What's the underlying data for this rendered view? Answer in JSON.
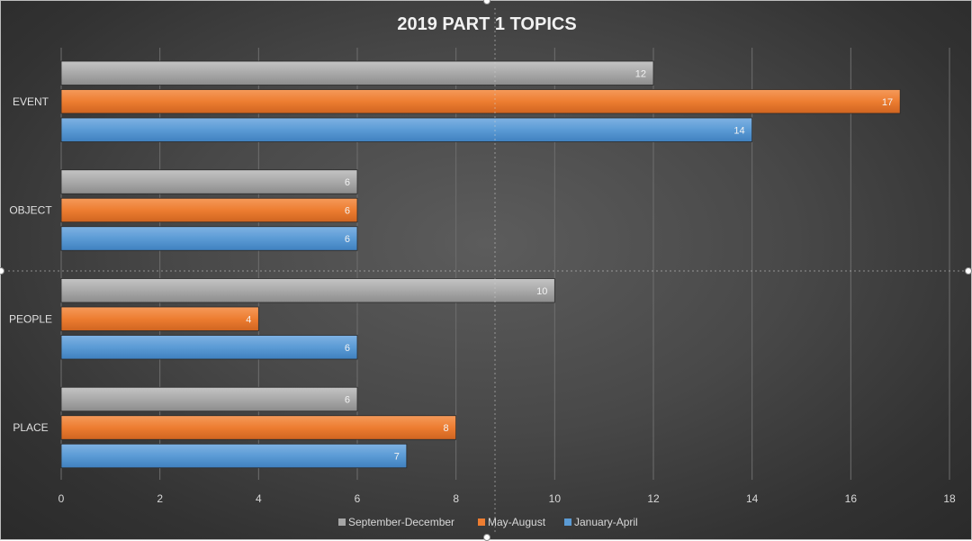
{
  "chart_data": {
    "type": "bar",
    "orientation": "horizontal",
    "title": "2019 PART 1 TOPICS",
    "categories": [
      "EVENT",
      "OBJECT",
      "PEOPLE",
      "PLACE"
    ],
    "series": [
      {
        "name": "September-December",
        "color": "#a6a6a6",
        "values": [
          12,
          6,
          10,
          6
        ]
      },
      {
        "name": "May-August",
        "color": "#ed7d31",
        "values": [
          17,
          6,
          4,
          8
        ]
      },
      {
        "name": "January-April",
        "color": "#5b9bd5",
        "values": [
          14,
          6,
          6,
          7
        ]
      }
    ],
    "xlim": [
      0,
      18
    ],
    "xticks": [
      0,
      2,
      4,
      6,
      8,
      10,
      12,
      14,
      16,
      18
    ],
    "grid": true,
    "legend": "bottom",
    "data_labels": true,
    "background": "dark"
  }
}
